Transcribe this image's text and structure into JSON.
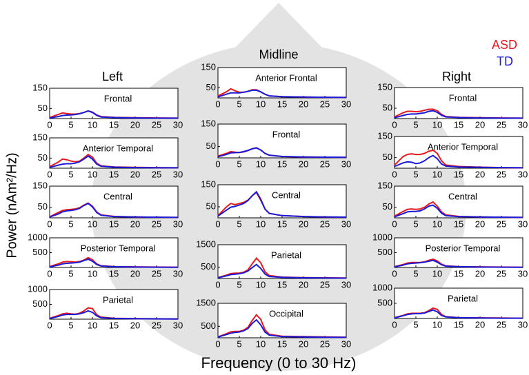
{
  "column_labels": [
    "Left",
    "Midline",
    "Right"
  ],
  "y_label": "Power (nAm²/Hz)",
  "x_label": "Frequency (0 to 30 Hz)",
  "chart_data": [
    {
      "type": "line",
      "title": "Frontal",
      "x": [
        0,
        2,
        3,
        4,
        5,
        6,
        7,
        8,
        9,
        10,
        11,
        12,
        15,
        20,
        25,
        30
      ],
      "xlim": [
        0,
        30
      ],
      "xticks": [
        0,
        5,
        10,
        15,
        20,
        25,
        30
      ],
      "ylim": [
        0,
        150
      ],
      "yticks": [
        50,
        150
      ],
      "series": [
        {
          "name": "ASD",
          "color": "#e8191c",
          "values": [
            5,
            20,
            28,
            25,
            22,
            22,
            25,
            30,
            38,
            32,
            18,
            10,
            6,
            4,
            3,
            2
          ]
        },
        {
          "name": "TD",
          "color": "#1a1adb",
          "values": [
            3,
            10,
            15,
            17,
            18,
            20,
            24,
            30,
            38,
            30,
            16,
            8,
            5,
            3,
            2,
            2
          ]
        }
      ]
    },
    {
      "type": "line",
      "title": "Anterior Temporal",
      "x": [
        0,
        2,
        3,
        4,
        5,
        6,
        7,
        8,
        9,
        10,
        11,
        12,
        15,
        20,
        25,
        30
      ],
      "xlim": [
        0,
        30
      ],
      "xticks": [
        0,
        5,
        10,
        15,
        20,
        25,
        30
      ],
      "ylim": [
        0,
        150
      ],
      "yticks": [
        50,
        150
      ],
      "series": [
        {
          "name": "ASD",
          "color": "#e8191c",
          "values": [
            8,
            30,
            45,
            42,
            35,
            32,
            35,
            50,
            68,
            55,
            25,
            12,
            6,
            4,
            3,
            2
          ]
        },
        {
          "name": "TD",
          "color": "#1a1adb",
          "values": [
            4,
            15,
            20,
            22,
            22,
            25,
            32,
            45,
            60,
            45,
            20,
            10,
            5,
            3,
            2,
            2
          ]
        }
      ]
    },
    {
      "type": "line",
      "title": "Central",
      "x": [
        0,
        2,
        3,
        4,
        5,
        6,
        7,
        8,
        9,
        10,
        11,
        12,
        15,
        20,
        25,
        30
      ],
      "xlim": [
        0,
        30
      ],
      "xticks": [
        0,
        5,
        10,
        15,
        20,
        25,
        30
      ],
      "ylim": [
        0,
        150
      ],
      "yticks": [
        50,
        150
      ],
      "series": [
        {
          "name": "ASD",
          "color": "#e8191c",
          "values": [
            5,
            25,
            35,
            38,
            40,
            42,
            48,
            60,
            70,
            55,
            28,
            14,
            7,
            4,
            3,
            2
          ]
        },
        {
          "name": "TD",
          "color": "#1a1adb",
          "values": [
            4,
            18,
            28,
            33,
            35,
            38,
            45,
            58,
            68,
            52,
            25,
            12,
            6,
            4,
            3,
            2
          ]
        }
      ]
    },
    {
      "type": "line",
      "title": "Posterior Temporal",
      "x": [
        0,
        2,
        3,
        4,
        5,
        6,
        7,
        8,
        9,
        10,
        11,
        12,
        15,
        20,
        25,
        30
      ],
      "xlim": [
        0,
        30
      ],
      "xticks": [
        0,
        5,
        10,
        15,
        20,
        25,
        30
      ],
      "ylim": [
        0,
        1000
      ],
      "yticks": [
        500,
        1000
      ],
      "series": [
        {
          "name": "ASD",
          "color": "#e8191c",
          "values": [
            30,
            120,
            180,
            200,
            190,
            180,
            200,
            250,
            330,
            260,
            120,
            60,
            30,
            20,
            15,
            10
          ]
        },
        {
          "name": "TD",
          "color": "#1a1adb",
          "values": [
            20,
            80,
            120,
            140,
            150,
            160,
            180,
            230,
            280,
            210,
            100,
            50,
            25,
            15,
            10,
            8
          ]
        }
      ]
    },
    {
      "type": "line",
      "title": "Parietal",
      "x": [
        0,
        2,
        3,
        4,
        5,
        6,
        7,
        8,
        9,
        10,
        11,
        12,
        15,
        20,
        25,
        30
      ],
      "xlim": [
        0,
        30
      ],
      "xticks": [
        0,
        5,
        10,
        15,
        20,
        25,
        30
      ],
      "ylim": [
        0,
        1000
      ],
      "yticks": [
        500,
        1000
      ],
      "series": [
        {
          "name": "ASD",
          "color": "#e8191c",
          "values": [
            30,
            120,
            180,
            200,
            180,
            170,
            200,
            280,
            380,
            360,
            150,
            70,
            30,
            20,
            15,
            10
          ]
        },
        {
          "name": "TD",
          "color": "#1a1adb",
          "values": [
            20,
            90,
            140,
            160,
            160,
            160,
            180,
            220,
            280,
            230,
            110,
            50,
            25,
            15,
            10,
            8
          ]
        }
      ]
    },
    {
      "type": "line",
      "title": "Anterior Frontal",
      "x": [
        0,
        2,
        3,
        4,
        5,
        6,
        7,
        8,
        9,
        10,
        11,
        12,
        15,
        20,
        25,
        30
      ],
      "xlim": [
        0,
        30
      ],
      "xticks": [
        0,
        5,
        10,
        15,
        20,
        25,
        30
      ],
      "ylim": [
        0,
        150
      ],
      "yticks": [
        50,
        150
      ],
      "series": [
        {
          "name": "ASD",
          "color": "#e8191c",
          "values": [
            10,
            30,
            45,
            35,
            28,
            28,
            32,
            40,
            40,
            30,
            18,
            10,
            6,
            4,
            3,
            2
          ]
        },
        {
          "name": "TD",
          "color": "#1a1adb",
          "values": [
            5,
            18,
            25,
            25,
            25,
            28,
            32,
            38,
            38,
            30,
            18,
            10,
            6,
            4,
            3,
            2
          ]
        }
      ]
    },
    {
      "type": "line",
      "title": "Frontal",
      "x": [
        0,
        2,
        3,
        4,
        5,
        6,
        7,
        8,
        9,
        10,
        11,
        12,
        15,
        20,
        25,
        30
      ],
      "xlim": [
        0,
        30
      ],
      "xticks": [
        0,
        5,
        10,
        15,
        20,
        25,
        30
      ],
      "ylim": [
        0,
        150
      ],
      "yticks": [
        50,
        150
      ],
      "series": [
        {
          "name": "ASD",
          "color": "#e8191c",
          "values": [
            8,
            20,
            28,
            25,
            24,
            26,
            32,
            40,
            45,
            35,
            20,
            12,
            6,
            4,
            3,
            2
          ]
        },
        {
          "name": "TD",
          "color": "#1a1adb",
          "values": [
            5,
            15,
            22,
            23,
            24,
            28,
            33,
            40,
            44,
            35,
            20,
            12,
            6,
            4,
            3,
            2
          ]
        }
      ]
    },
    {
      "type": "line",
      "title": "Central",
      "x": [
        0,
        2,
        3,
        4,
        5,
        6,
        7,
        8,
        9,
        10,
        11,
        12,
        15,
        20,
        25,
        30
      ],
      "xlim": [
        0,
        30
      ],
      "xticks": [
        0,
        5,
        10,
        15,
        20,
        25,
        30
      ],
      "ylim": [
        0,
        150
      ],
      "yticks": [
        50,
        150
      ],
      "series": [
        {
          "name": "ASD",
          "color": "#e8191c",
          "values": [
            10,
            50,
            65,
            60,
            65,
            70,
            80,
            100,
            115,
            80,
            40,
            20,
            10,
            6,
            4,
            3
          ]
        },
        {
          "name": "TD",
          "color": "#1a1adb",
          "values": [
            8,
            35,
            48,
            52,
            58,
            65,
            78,
            100,
            118,
            85,
            40,
            20,
            10,
            6,
            4,
            3
          ]
        }
      ]
    },
    {
      "type": "line",
      "title": "Parietal",
      "x": [
        0,
        2,
        3,
        4,
        5,
        6,
        7,
        8,
        9,
        10,
        11,
        12,
        15,
        20,
        25,
        30
      ],
      "xlim": [
        0,
        30
      ],
      "xticks": [
        0,
        5,
        10,
        15,
        20,
        25,
        30
      ],
      "ylim": [
        0,
        1500
      ],
      "yticks": [
        500,
        1500
      ],
      "series": [
        {
          "name": "ASD",
          "color": "#e8191c",
          "values": [
            40,
            150,
            220,
            240,
            240,
            280,
            380,
            650,
            900,
            700,
            300,
            130,
            60,
            40,
            30,
            20
          ]
        },
        {
          "name": "TD",
          "color": "#1a1adb",
          "values": [
            30,
            120,
            170,
            190,
            210,
            250,
            330,
            480,
            620,
            450,
            200,
            90,
            50,
            30,
            20,
            15
          ]
        }
      ]
    },
    {
      "type": "line",
      "title": "Occipital",
      "x": [
        0,
        2,
        3,
        4,
        5,
        6,
        7,
        8,
        9,
        10,
        11,
        12,
        15,
        20,
        25,
        30
      ],
      "xlim": [
        0,
        30
      ],
      "xticks": [
        0,
        5,
        10,
        15,
        20,
        25,
        30
      ],
      "ylim": [
        0,
        1500
      ],
      "yticks": [
        500,
        1500
      ],
      "series": [
        {
          "name": "ASD",
          "color": "#e8191c",
          "values": [
            40,
            180,
            260,
            280,
            280,
            330,
            450,
            750,
            1000,
            800,
            350,
            150,
            70,
            50,
            35,
            25
          ]
        },
        {
          "name": "TD",
          "color": "#1a1adb",
          "values": [
            30,
            140,
            200,
            230,
            250,
            300,
            400,
            620,
            780,
            560,
            250,
            110,
            55,
            35,
            25,
            18
          ]
        }
      ]
    },
    {
      "type": "line",
      "title": "Frontal",
      "x": [
        0,
        2,
        3,
        4,
        5,
        6,
        7,
        8,
        9,
        10,
        11,
        12,
        15,
        20,
        25,
        30
      ],
      "xlim": [
        0,
        30
      ],
      "xticks": [
        0,
        5,
        10,
        15,
        20,
        25,
        30
      ],
      "ylim": [
        0,
        150
      ],
      "yticks": [
        50,
        150
      ],
      "series": [
        {
          "name": "ASD",
          "color": "#e8191c",
          "values": [
            8,
            28,
            35,
            35,
            33,
            35,
            40,
            45,
            45,
            38,
            20,
            10,
            6,
            4,
            3,
            2
          ]
        },
        {
          "name": "TD",
          "color": "#1a1adb",
          "values": [
            4,
            15,
            20,
            22,
            22,
            25,
            28,
            35,
            38,
            30,
            16,
            8,
            5,
            3,
            2,
            2
          ]
        }
      ]
    },
    {
      "type": "line",
      "title": "Anterior Temporal",
      "x": [
        0,
        2,
        3,
        4,
        5,
        6,
        7,
        8,
        9,
        10,
        11,
        12,
        15,
        20,
        25,
        30
      ],
      "xlim": [
        0,
        30
      ],
      "xticks": [
        0,
        5,
        10,
        15,
        20,
        25,
        30
      ],
      "ylim": [
        0,
        150
      ],
      "yticks": [
        50,
        150
      ],
      "series": [
        {
          "name": "ASD",
          "color": "#e8191c",
          "values": [
            15,
            55,
            65,
            68,
            65,
            65,
            70,
            80,
            85,
            70,
            35,
            15,
            8,
            5,
            3,
            2
          ]
        },
        {
          "name": "TD",
          "color": "#1a1adb",
          "values": [
            8,
            25,
            30,
            28,
            22,
            25,
            35,
            50,
            60,
            45,
            20,
            10,
            6,
            4,
            3,
            2
          ]
        }
      ]
    },
    {
      "type": "line",
      "title": "Central",
      "x": [
        0,
        2,
        3,
        4,
        5,
        6,
        7,
        8,
        9,
        10,
        11,
        12,
        15,
        20,
        25,
        30
      ],
      "xlim": [
        0,
        30
      ],
      "xticks": [
        0,
        5,
        10,
        15,
        20,
        25,
        30
      ],
      "ylim": [
        0,
        150
      ],
      "yticks": [
        50,
        150
      ],
      "series": [
        {
          "name": "ASD",
          "color": "#e8191c",
          "values": [
            8,
            30,
            40,
            42,
            40,
            42,
            50,
            65,
            75,
            55,
            28,
            14,
            7,
            4,
            3,
            2
          ]
        },
        {
          "name": "TD",
          "color": "#1a1adb",
          "values": [
            5,
            20,
            28,
            30,
            30,
            33,
            42,
            55,
            60,
            45,
            22,
            10,
            6,
            4,
            3,
            2
          ]
        }
      ]
    },
    {
      "type": "line",
      "title": "Posterior Temporal",
      "x": [
        0,
        2,
        3,
        4,
        5,
        6,
        7,
        8,
        9,
        10,
        11,
        12,
        15,
        20,
        25,
        30
      ],
      "xlim": [
        0,
        30
      ],
      "xticks": [
        0,
        5,
        10,
        15,
        20,
        25,
        30
      ],
      "ylim": [
        0,
        1000
      ],
      "yticks": [
        500,
        1000
      ],
      "series": [
        {
          "name": "ASD",
          "color": "#e8191c",
          "values": [
            25,
            100,
            150,
            170,
            170,
            170,
            190,
            240,
            280,
            220,
            110,
            55,
            30,
            20,
            15,
            10
          ]
        },
        {
          "name": "TD",
          "color": "#1a1adb",
          "values": [
            20,
            80,
            120,
            140,
            150,
            160,
            180,
            210,
            240,
            180,
            90,
            45,
            25,
            15,
            10,
            8
          ]
        }
      ]
    },
    {
      "type": "line",
      "title": "Parietal",
      "x": [
        0,
        2,
        3,
        4,
        5,
        6,
        7,
        8,
        9,
        10,
        11,
        12,
        15,
        20,
        25,
        30
      ],
      "xlim": [
        0,
        30
      ],
      "xticks": [
        0,
        5,
        10,
        15,
        20,
        25,
        30
      ],
      "ylim": [
        0,
        1000
      ],
      "yticks": [
        500,
        1000
      ],
      "series": [
        {
          "name": "ASD",
          "color": "#e8191c",
          "values": [
            25,
            100,
            150,
            170,
            170,
            170,
            190,
            260,
            340,
            300,
            130,
            60,
            30,
            20,
            15,
            10
          ]
        },
        {
          "name": "TD",
          "color": "#1a1adb",
          "values": [
            20,
            90,
            130,
            150,
            160,
            160,
            180,
            230,
            280,
            220,
            100,
            50,
            25,
            15,
            10,
            8
          ]
        }
      ]
    }
  ]
}
